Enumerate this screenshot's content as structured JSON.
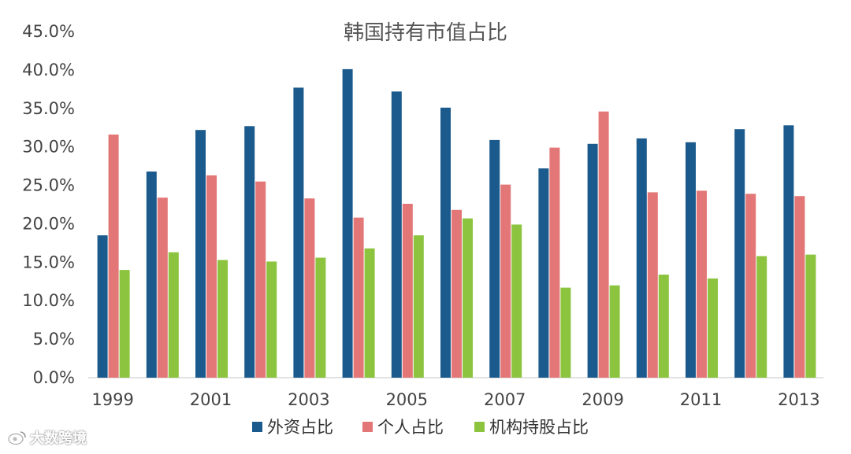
{
  "chart_data": {
    "type": "bar",
    "title": "韩国持有市值占比",
    "categories": [
      "1999",
      "2000",
      "2001",
      "2002",
      "2003",
      "2004",
      "2005",
      "2006",
      "2007",
      "2008",
      "2009",
      "2010",
      "2011",
      "2012",
      "2013"
    ],
    "x_tick_labels": [
      "1999",
      "",
      "2001",
      "",
      "2003",
      "",
      "2005",
      "",
      "2007",
      "",
      "2009",
      "",
      "2011",
      "",
      "2013"
    ],
    "series": [
      {
        "name": "外资占比",
        "color": "#1b5a8c",
        "values": [
          18.5,
          26.8,
          32.2,
          32.7,
          37.7,
          40.1,
          37.2,
          35.1,
          30.9,
          27.2,
          30.4,
          31.1,
          30.6,
          32.3,
          32.8
        ]
      },
      {
        "name": "个人占比",
        "color": "#e37676",
        "values": [
          31.6,
          23.4,
          26.3,
          25.5,
          23.3,
          20.8,
          22.6,
          21.8,
          25.1,
          29.9,
          34.6,
          24.1,
          24.3,
          23.9,
          23.6
        ]
      },
      {
        "name": "机构持股占比",
        "color": "#8cc43f",
        "values": [
          14.0,
          16.3,
          15.3,
          15.1,
          15.6,
          16.8,
          18.5,
          20.7,
          19.9,
          11.7,
          12.0,
          13.4,
          12.9,
          15.8,
          16.0
        ]
      }
    ],
    "xlabel": "",
    "ylabel": "",
    "ylim": [
      0,
      45
    ],
    "y_ticks": [
      "0.0%",
      "5.0%",
      "10.0%",
      "15.0%",
      "20.0%",
      "25.0%",
      "30.0%",
      "35.0%",
      "40.0%",
      "45.0%"
    ],
    "grid": false,
    "legend_position": "bottom"
  },
  "watermark": {
    "text": "大数跨境",
    "icon": "weibo-logo-icon"
  }
}
